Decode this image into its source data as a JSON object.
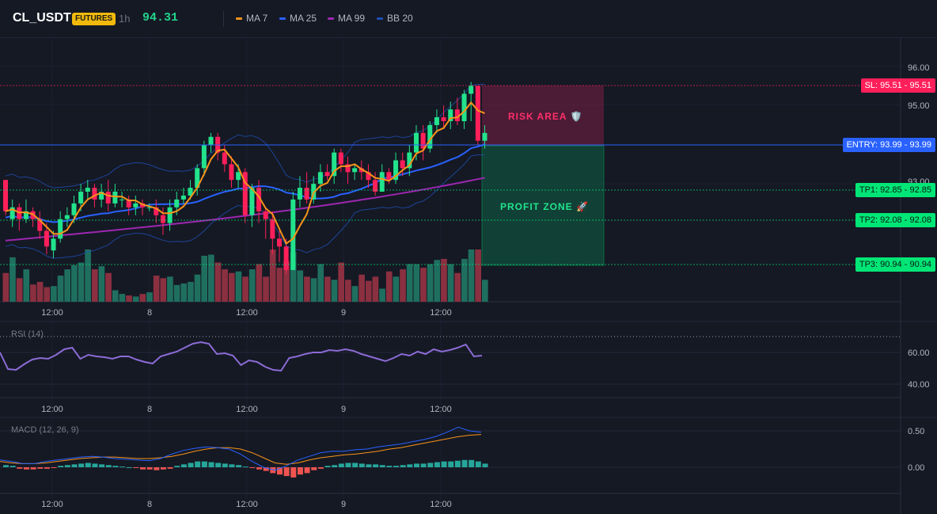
{
  "header": {
    "symbol": "CL_USDT",
    "badge": "FUTURES",
    "timeframe": "1h",
    "last_price": "94.31"
  },
  "indicators": [
    {
      "label": "MA 7",
      "color": "#f7931a"
    },
    {
      "label": "MA 25",
      "color": "#2962ff"
    },
    {
      "label": "MA 99",
      "color": "#9c27b0"
    },
    {
      "label": "BB 20",
      "color": "#1e4fb4"
    }
  ],
  "zones": {
    "risk_label": "RISK AREA 🛡️",
    "profit_label": "PROFIT ZONE 🚀"
  },
  "levels": {
    "sl": {
      "label": "SL: 95.51",
      "value": "95.51",
      "color": "#ff1f5a"
    },
    "entry": {
      "label": "ENTRY: 93.99",
      "value": "93.99",
      "color": "#2962ff"
    },
    "tp1": {
      "label": "TP1: 92.85",
      "value": "92.85",
      "color": "#00e676"
    },
    "tp2": {
      "label": "TP2: 92.08",
      "value": "92.08",
      "color": "#00e676"
    },
    "tp3": {
      "label": "TP3: 90.94",
      "value": "90.94",
      "color": "#00e676"
    }
  },
  "price_axis": [
    "96.00",
    "95.00",
    "93.00"
  ],
  "rsi": {
    "title": "RSI (14)",
    "axis": [
      "60.00",
      "40.00"
    ]
  },
  "macd": {
    "title": "MACD (12, 26, 9)",
    "axis": [
      "0.50",
      "0.00"
    ]
  },
  "time_axis": [
    "12:00",
    "8",
    "12:00",
    "9",
    "12:00"
  ],
  "chart_data": {
    "type": "candlestick",
    "price_range": [
      89.9,
      96.8
    ],
    "candles": [
      [
        93.1,
        92.3,
        93.1,
        92.2
      ],
      [
        92.1,
        92.4,
        92.6,
        91.9
      ],
      [
        92.4,
        92.1,
        92.5,
        91.8
      ],
      [
        92.1,
        92.3,
        92.6,
        92.0
      ],
      [
        92.3,
        92.1,
        92.4,
        91.9
      ],
      [
        92.1,
        91.8,
        92.3,
        91.6
      ],
      [
        91.8,
        91.4,
        92.0,
        91.2
      ],
      [
        91.3,
        91.6,
        91.8,
        91.1
      ],
      [
        91.6,
        92.1,
        92.3,
        91.5
      ],
      [
        92.1,
        92.2,
        92.4,
        91.9
      ],
      [
        92.2,
        92.5,
        92.7,
        92.0
      ],
      [
        92.5,
        92.8,
        93.0,
        92.3
      ],
      [
        92.8,
        92.9,
        93.1,
        92.6
      ],
      [
        92.9,
        92.6,
        93.0,
        92.4
      ],
      [
        92.6,
        92.8,
        93.0,
        92.4
      ],
      [
        92.8,
        92.5,
        93.1,
        92.3
      ],
      [
        92.5,
        92.8,
        93.0,
        92.4
      ],
      [
        92.6,
        92.6,
        92.8,
        92.4
      ],
      [
        92.6,
        92.4,
        92.7,
        92.2
      ],
      [
        92.4,
        92.5,
        92.7,
        92.2
      ],
      [
        92.5,
        92.4,
        92.6,
        92.2
      ],
      [
        92.4,
        92.4,
        92.5,
        92.3
      ],
      [
        92.4,
        92.2,
        92.6,
        92.0
      ],
      [
        92.2,
        92.0,
        92.4,
        91.7
      ],
      [
        92.0,
        92.4,
        92.6,
        91.8
      ],
      [
        92.4,
        92.6,
        92.8,
        92.2
      ],
      [
        92.6,
        92.7,
        92.9,
        92.5
      ],
      [
        92.7,
        92.9,
        93.1,
        92.6
      ],
      [
        92.9,
        93.4,
        93.5,
        92.7
      ],
      [
        93.4,
        94.0,
        94.1,
        93.2
      ],
      [
        94.0,
        94.2,
        94.3,
        93.8
      ],
      [
        94.2,
        93.8,
        94.3,
        93.6
      ],
      [
        93.8,
        93.5,
        94.0,
        93.3
      ],
      [
        93.5,
        93.1,
        93.7,
        92.9
      ],
      [
        93.1,
        93.3,
        93.5,
        92.9
      ],
      [
        93.3,
        92.2,
        93.4,
        92.0
      ],
      [
        92.2,
        92.9,
        93.0,
        91.9
      ],
      [
        92.9,
        92.3,
        93.1,
        92.0
      ],
      [
        92.3,
        92.1,
        92.4,
        91.6
      ],
      [
        92.1,
        91.6,
        92.3,
        91.2
      ],
      [
        91.6,
        91.4,
        91.8,
        91.0
      ],
      [
        91.4,
        90.8,
        91.6,
        90.7
      ],
      [
        90.8,
        92.6,
        92.8,
        90.8
      ],
      [
        92.6,
        92.9,
        93.2,
        92.4
      ],
      [
        92.9,
        92.6,
        93.3,
        92.5
      ],
      [
        92.6,
        93.0,
        93.2,
        92.5
      ],
      [
        93.0,
        93.3,
        93.5,
        92.8
      ],
      [
        93.3,
        93.2,
        93.5,
        93.1
      ],
      [
        93.2,
        93.8,
        93.9,
        93.0
      ],
      [
        93.8,
        93.5,
        93.9,
        93.3
      ],
      [
        93.5,
        93.3,
        93.7,
        93.0
      ],
      [
        93.3,
        93.4,
        93.5,
        93.1
      ],
      [
        93.4,
        93.3,
        93.6,
        93.1
      ],
      [
        93.3,
        93.1,
        93.5,
        92.9
      ],
      [
        93.1,
        92.8,
        93.3,
        92.7
      ],
      [
        92.8,
        93.3,
        93.5,
        92.8
      ],
      [
        93.3,
        93.1,
        93.4,
        93.0
      ],
      [
        93.1,
        93.6,
        93.8,
        93.0
      ],
      [
        93.6,
        93.4,
        93.8,
        93.2
      ],
      [
        93.4,
        93.8,
        94.0,
        93.2
      ],
      [
        93.8,
        94.3,
        94.5,
        93.6
      ],
      [
        94.3,
        93.9,
        94.5,
        93.6
      ],
      [
        93.9,
        94.5,
        94.6,
        93.8
      ],
      [
        94.5,
        94.7,
        94.9,
        94.3
      ],
      [
        94.7,
        94.6,
        95.0,
        94.4
      ],
      [
        94.6,
        94.9,
        95.1,
        94.4
      ],
      [
        94.9,
        94.6,
        95.2,
        94.5
      ],
      [
        94.6,
        95.3,
        95.4,
        94.4
      ],
      [
        95.3,
        95.5,
        95.6,
        94.6
      ],
      [
        95.5,
        94.1,
        95.5,
        94.0
      ],
      [
        94.1,
        94.3,
        94.5,
        93.9
      ]
    ],
    "volume": [
      0.55,
      0.85,
      0.45,
      0.62,
      0.33,
      0.38,
      0.28,
      0.3,
      0.5,
      0.62,
      0.7,
      0.75,
      1.0,
      0.62,
      0.68,
      0.55,
      0.22,
      0.15,
      0.12,
      0.1,
      0.15,
      0.18,
      0.5,
      0.45,
      0.48,
      0.32,
      0.35,
      0.38,
      0.52,
      0.88,
      0.9,
      0.75,
      0.62,
      0.55,
      0.58,
      0.48,
      0.62,
      0.72,
      0.48,
      1.0,
      0.65,
      0.78,
      0.95,
      0.6,
      0.48,
      0.45,
      0.72,
      0.48,
      0.42,
      0.75,
      0.42,
      0.3,
      0.52,
      0.4,
      0.48,
      0.25,
      0.58,
      0.48,
      0.62,
      0.72,
      0.72,
      0.65,
      0.72,
      0.8,
      0.82,
      0.72,
      0.55,
      0.82,
      1.0,
      1.0,
      0.42
    ],
    "rsi": [
      60,
      39,
      38,
      45,
      51,
      53,
      52,
      57,
      64,
      66,
      52,
      57,
      55,
      54,
      52,
      55,
      55,
      51,
      48,
      46,
      55,
      58,
      61,
      66,
      71,
      73,
      71,
      58,
      59,
      56,
      44,
      50,
      48,
      42,
      38,
      37,
      53,
      55,
      58,
      60,
      60,
      63,
      62,
      64,
      62,
      58,
      55,
      52,
      49,
      53,
      58,
      56,
      61,
      58,
      64,
      61,
      63,
      66,
      70,
      55,
      56
    ],
    "macd": [
      0.1,
      0.08,
      0.05,
      0.05,
      0.08,
      0.1,
      0.12,
      0.14,
      0.15,
      0.14,
      0.12,
      0.11,
      0.1,
      0.09,
      0.12,
      0.18,
      0.23,
      0.26,
      0.28,
      0.27,
      0.25,
      0.18,
      0.08,
      0.0,
      -0.04,
      0.02,
      0.1,
      0.15,
      0.2,
      0.22,
      0.22,
      0.24,
      0.25,
      0.28,
      0.3,
      0.32,
      0.35,
      0.38,
      0.42,
      0.48,
      0.55,
      0.5,
      0.48
    ],
    "macd_signal": [
      0.08,
      0.06,
      0.05,
      0.05,
      0.06,
      0.08,
      0.1,
      0.12,
      0.13,
      0.14,
      0.14,
      0.13,
      0.12,
      0.12,
      0.13,
      0.15,
      0.18,
      0.22,
      0.25,
      0.27,
      0.27,
      0.25,
      0.2,
      0.13,
      0.06,
      0.04,
      0.06,
      0.1,
      0.13,
      0.15,
      0.17,
      0.18,
      0.2,
      0.22,
      0.25,
      0.27,
      0.3,
      0.33,
      0.36,
      0.39,
      0.42,
      0.44,
      0.45
    ],
    "macd_hist": [
      0.03,
      0.02,
      -0.02,
      -0.03,
      -0.03,
      -0.02,
      -0.02,
      -0.01,
      0.02,
      0.03,
      0.04,
      0.05,
      0.06,
      0.05,
      0.04,
      0.03,
      0.02,
      0.01,
      0.0,
      -0.01,
      -0.03,
      -0.03,
      -0.04,
      -0.03,
      -0.02,
      0.02,
      0.04,
      0.06,
      0.08,
      0.08,
      0.07,
      0.06,
      0.05,
      0.04,
      0.03,
      0.01,
      -0.01,
      -0.03,
      -0.05,
      -0.08,
      -0.1,
      -0.12,
      -0.14,
      -0.1,
      -0.08,
      -0.04,
      -0.02,
      0.02,
      0.03,
      0.05,
      0.06,
      0.06,
      0.05,
      0.04,
      0.04,
      0.03,
      0.02,
      0.02,
      0.03,
      0.04,
      0.05,
      0.05,
      0.06,
      0.07,
      0.08,
      0.08,
      0.09,
      0.1,
      0.1,
      0.08,
      0.05
    ]
  }
}
